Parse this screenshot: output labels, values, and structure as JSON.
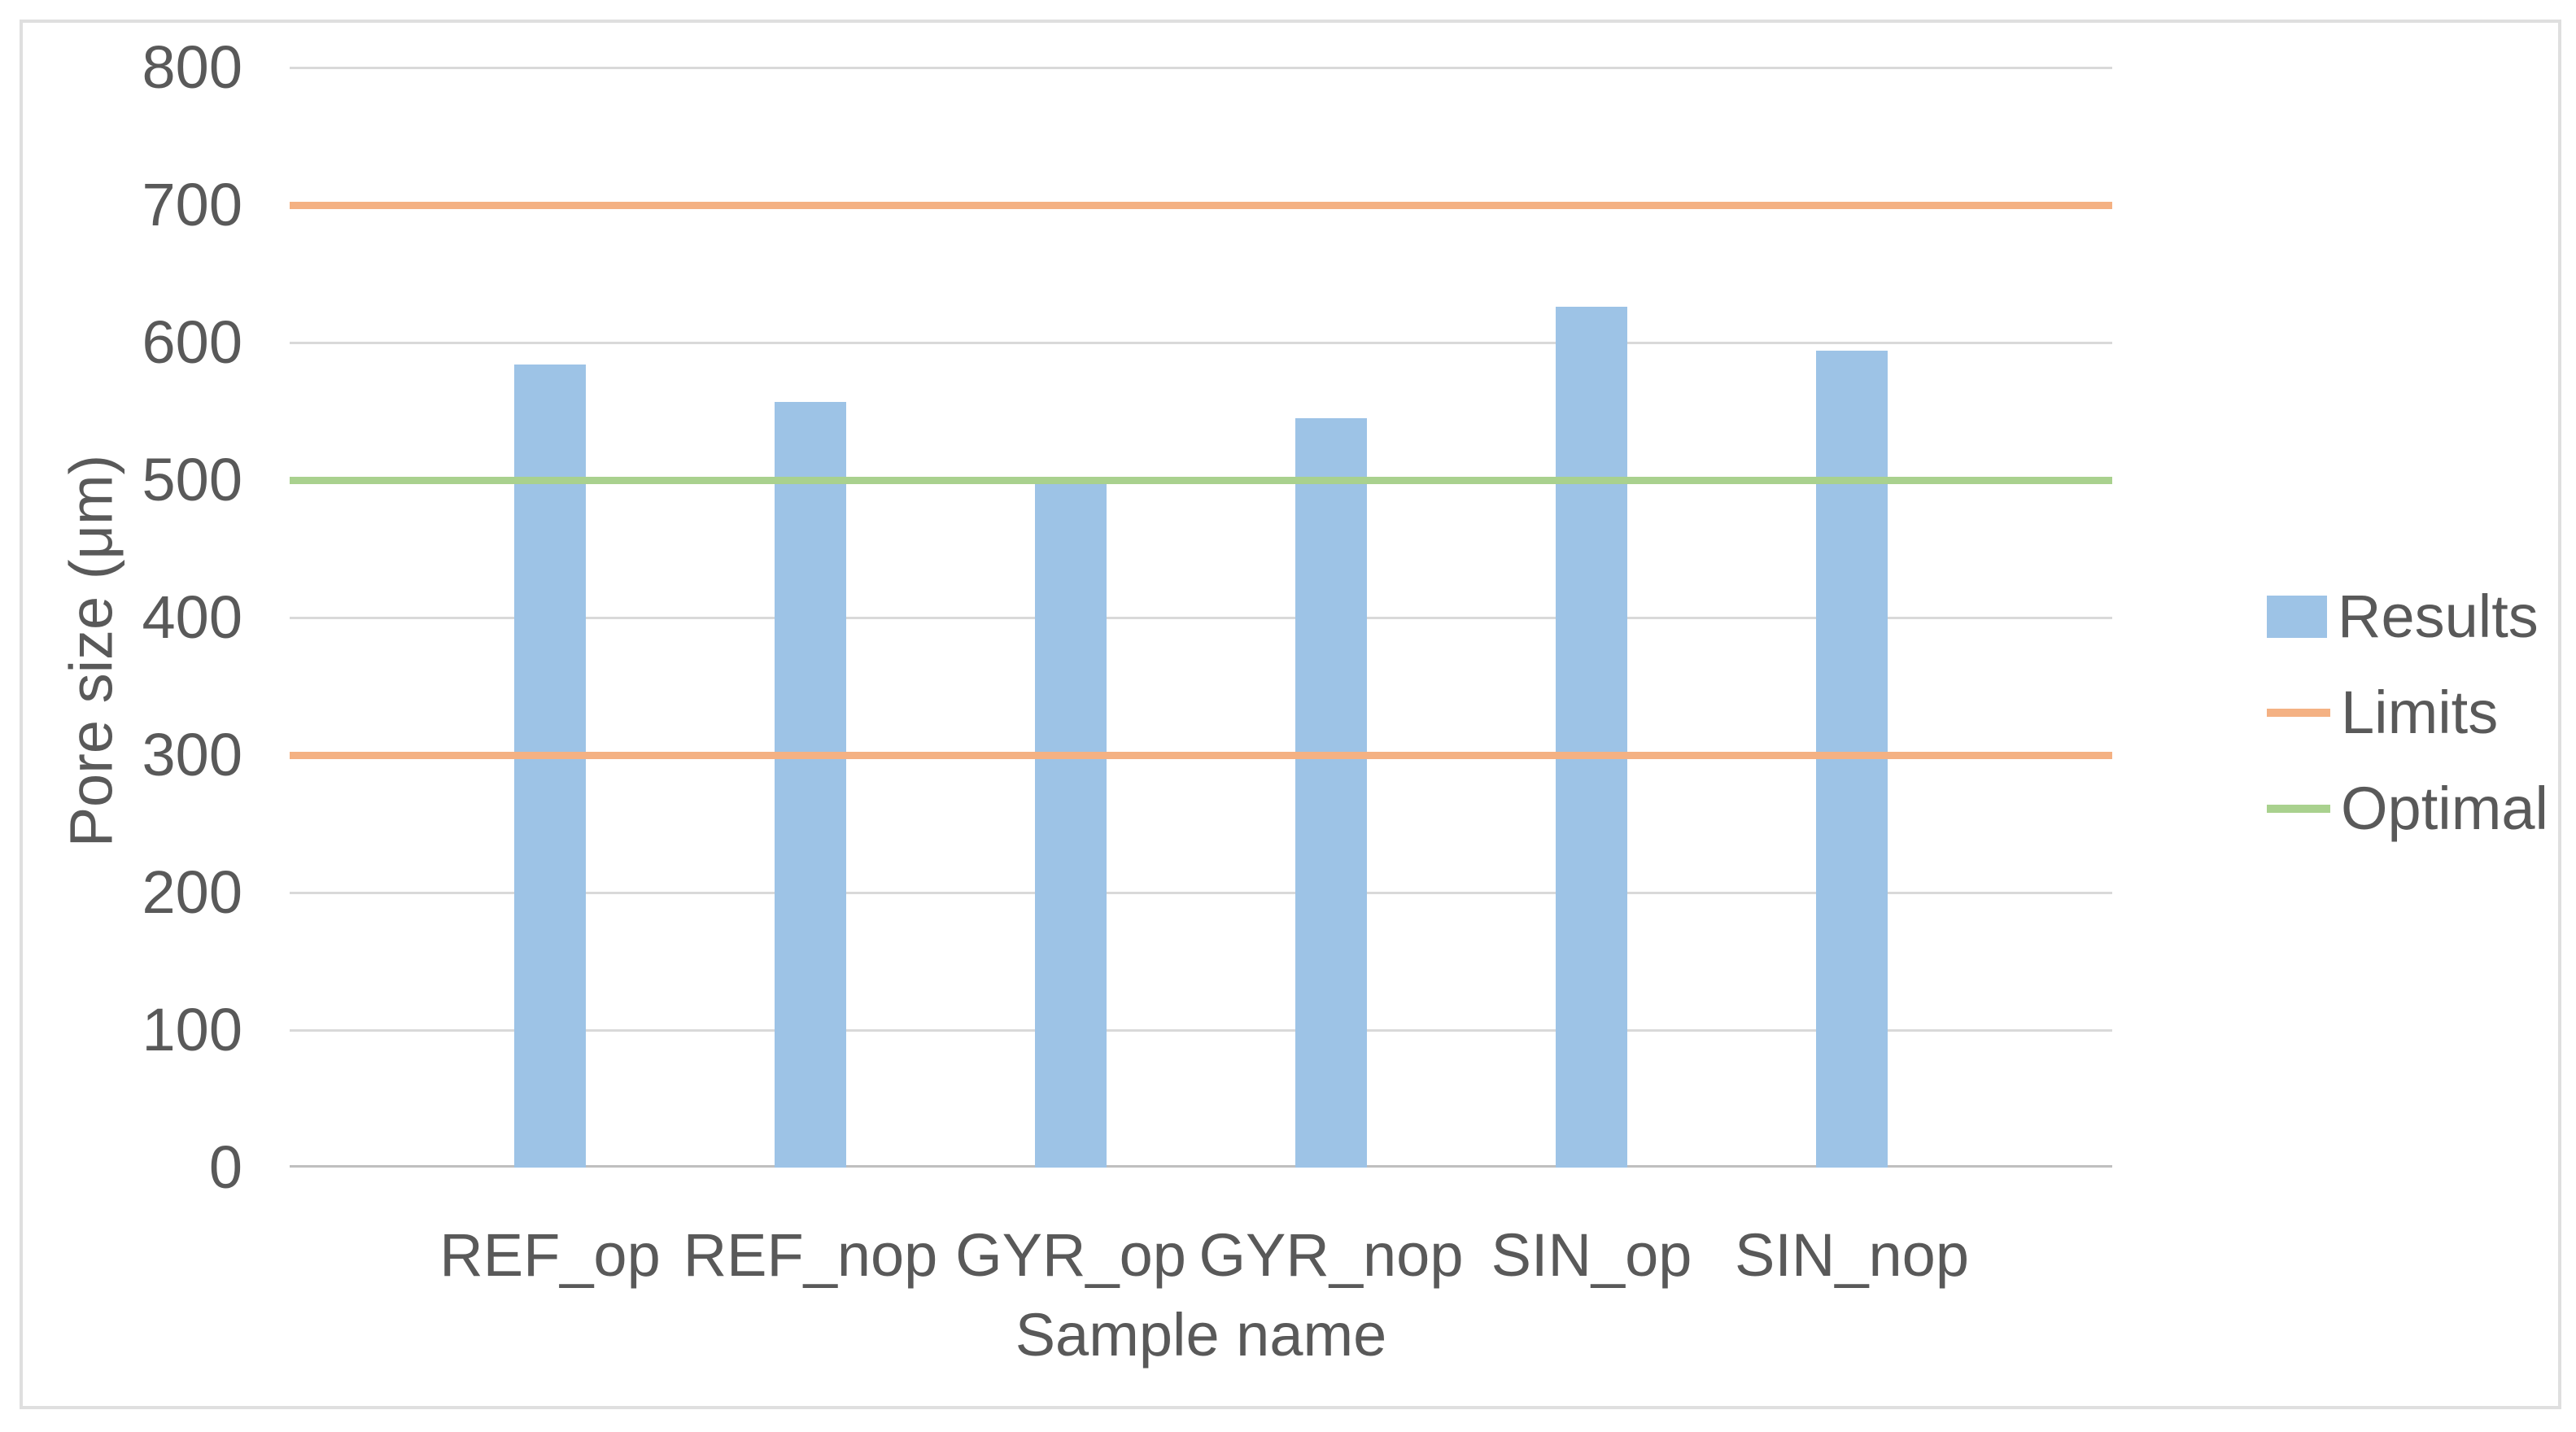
{
  "figure": {
    "background": "#FFFFFF",
    "border_color": "#DFDFDF"
  },
  "chart_data": {
    "type": "bar",
    "title": "",
    "categories": [
      "REF_op",
      "REF_nop",
      "GYR_op",
      "GYR_nop",
      "SIN_op",
      "SIN_nop"
    ],
    "series": [
      {
        "name": "Results",
        "kind": "bar",
        "color": "#9DC3E6",
        "values": [
          584,
          557,
          500,
          545,
          626,
          594
        ]
      },
      {
        "name": "Limits",
        "kind": "hline",
        "color": "#F4B183",
        "values": [
          300,
          700
        ]
      },
      {
        "name": "Optimal",
        "kind": "hline",
        "color": "#A9D18E",
        "values": [
          500
        ]
      }
    ],
    "xlabel": "Sample name",
    "ylabel": "Pore size (μm)",
    "ylim": [
      0,
      800
    ],
    "yticks": [
      0,
      100,
      200,
      300,
      400,
      500,
      600,
      700,
      800
    ],
    "grid": true,
    "gridline_color": "#D9D9D9",
    "axis_line_color": "#BFBFBF",
    "text_color": "#595959",
    "legend_position": "right"
  }
}
